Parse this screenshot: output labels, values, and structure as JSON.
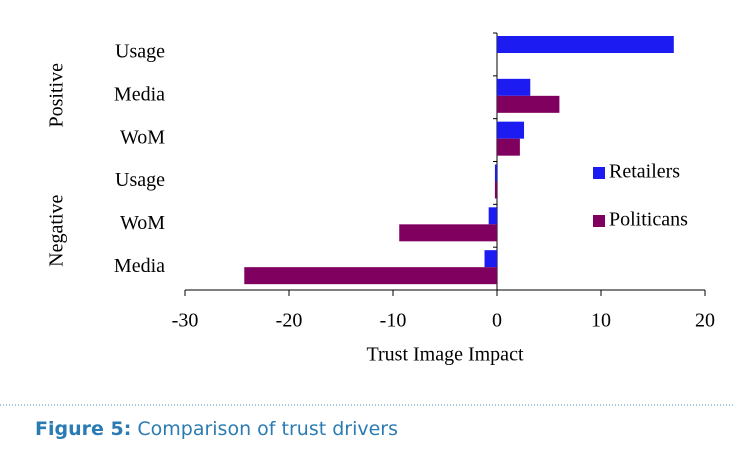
{
  "chart_data": {
    "type": "bar",
    "orientation": "horizontal",
    "categories": [
      "Usage",
      "Media",
      "WoM",
      "Usage",
      "WoM",
      "Media"
    ],
    "group_labels": [
      "Positive",
      "Negative"
    ],
    "series": [
      {
        "name": "Retailers",
        "color": "#1c1cf2",
        "values": [
          17.0,
          3.2,
          2.6,
          -0.2,
          -0.8,
          -1.2
        ]
      },
      {
        "name": "Politicans",
        "color": "#800060",
        "values": [
          null,
          6.0,
          2.2,
          -0.2,
          -9.4,
          -24.3
        ]
      }
    ],
    "xlabel": "Trust Image Impact",
    "xlim": [
      -30,
      20
    ],
    "xticks": [
      -30,
      -20,
      -10,
      0,
      10,
      20
    ],
    "legend": "right"
  },
  "caption": {
    "label": "Figure 5:",
    "text": "Comparison of trust drivers"
  }
}
